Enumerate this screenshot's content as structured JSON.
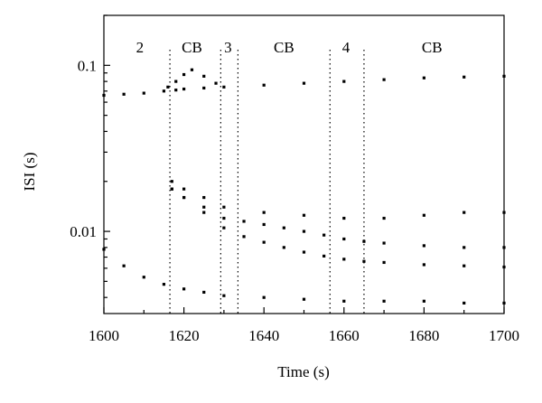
{
  "chart_data": {
    "type": "scatter",
    "title": "",
    "xlabel": "Time (s)",
    "ylabel": "ISI (s)",
    "xlim": [
      1600,
      1700
    ],
    "ylim": [
      0.0032,
      0.2
    ],
    "yscale": "log",
    "grid": false,
    "legend": "none",
    "x_ticks": [
      1600,
      1620,
      1640,
      1660,
      1680,
      1700
    ],
    "x_tick_labels": [
      "1600",
      "1620",
      "1640",
      "1660",
      "1680",
      "1700"
    ],
    "y_ticks": [
      0.01,
      0.1
    ],
    "y_tick_labels": [
      "0.01",
      "0.1"
    ],
    "point_color": "#000000",
    "dividers": [
      1616.5,
      1629.2,
      1633.5,
      1656.5,
      1665.0
    ],
    "regions": [
      {
        "label": "2",
        "x": 1609
      },
      {
        "label": "CB",
        "x": 1622
      },
      {
        "label": "3",
        "x": 1631
      },
      {
        "label": "CB",
        "x": 1645
      },
      {
        "label": "4",
        "x": 1660.5
      },
      {
        "label": "CB",
        "x": 1682
      }
    ],
    "series": [
      {
        "x": [
          1600,
          1605,
          1610,
          1615,
          1618,
          1620,
          1625,
          1630,
          1640,
          1650,
          1660,
          1670,
          1680,
          1690,
          1700
        ],
        "y": [
          0.066,
          0.067,
          0.068,
          0.07,
          0.071,
          0.072,
          0.073,
          0.074,
          0.076,
          0.078,
          0.08,
          0.082,
          0.084,
          0.085,
          0.086
        ]
      },
      {
        "x": [
          1616,
          1618,
          1620,
          1622,
          1625,
          1628
        ],
        "y": [
          0.074,
          0.08,
          0.088,
          0.094,
          0.086,
          0.078
        ]
      },
      {
        "x": [
          1600,
          1605,
          1610,
          1615,
          1620,
          1625,
          1630,
          1640,
          1650,
          1660,
          1670,
          1680,
          1690,
          1700
        ],
        "y": [
          0.0078,
          0.0062,
          0.0053,
          0.0048,
          0.0045,
          0.0043,
          0.0041,
          0.004,
          0.0039,
          0.0038,
          0.0038,
          0.0038,
          0.0037,
          0.0037
        ]
      },
      {
        "x": [
          1617,
          1620,
          1625,
          1630,
          1635,
          1640,
          1645,
          1650,
          1655,
          1660,
          1665,
          1670,
          1680,
          1690,
          1700
        ],
        "y": [
          0.018,
          0.016,
          0.013,
          0.0105,
          0.0093,
          0.0086,
          0.008,
          0.0075,
          0.0071,
          0.0068,
          0.0066,
          0.0065,
          0.0063,
          0.0062,
          0.0061
        ]
      },
      {
        "x": [
          1617,
          1620,
          1625,
          1630,
          1635,
          1640,
          1645,
          1650,
          1655,
          1660,
          1665,
          1670,
          1680,
          1690,
          1700
        ],
        "y": [
          0.018,
          0.016,
          0.014,
          0.012,
          0.0115,
          0.011,
          0.0105,
          0.01,
          0.0095,
          0.009,
          0.0087,
          0.0085,
          0.0082,
          0.008,
          0.008
        ]
      },
      {
        "x": [
          1617,
          1620,
          1625,
          1630,
          1640,
          1650,
          1660,
          1670,
          1680,
          1690,
          1700
        ],
        "y": [
          0.02,
          0.018,
          0.016,
          0.014,
          0.013,
          0.0125,
          0.012,
          0.012,
          0.0125,
          0.013,
          0.013
        ]
      }
    ]
  }
}
